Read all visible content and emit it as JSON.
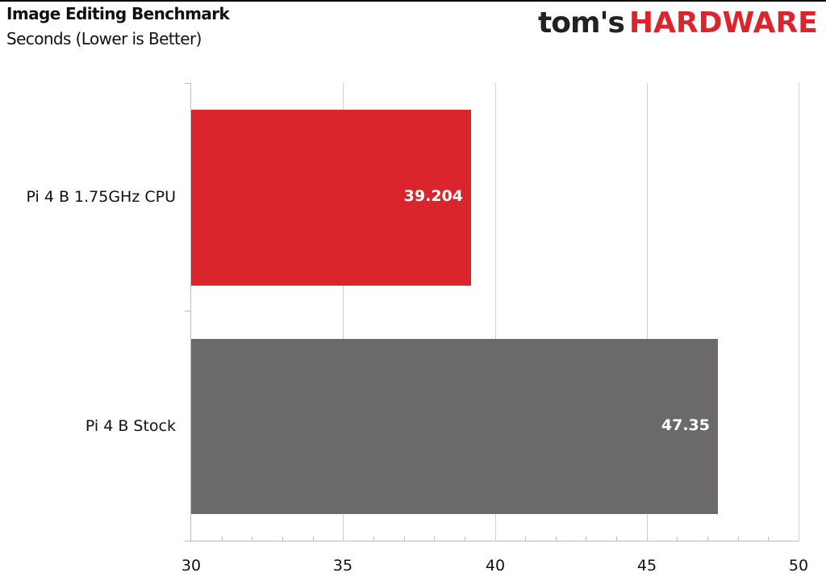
{
  "header": {
    "title": "Image Editing Benchmark",
    "subtitle": "Seconds (Lower is Better)",
    "logo_part1": "tom's",
    "logo_part2": "HARDWARE"
  },
  "colors": {
    "red": "#d9252b",
    "gray": "#6b6969",
    "grid": "#d0d0d0",
    "brand_red": "#d9252b"
  },
  "chart_data": {
    "type": "bar",
    "orientation": "horizontal",
    "title": "Image Editing Benchmark",
    "subtitle": "Seconds (Lower is Better)",
    "categories": [
      "Pi 4 B 1.75GHz CPU",
      "Pi 4 B Stock"
    ],
    "values": [
      39.204,
      47.35
    ],
    "value_labels": [
      "39.204",
      "47.35"
    ],
    "bar_colors": [
      "#d9252b",
      "#6b6969"
    ],
    "xlabel": "",
    "ylabel": "",
    "xlim": [
      30,
      50
    ],
    "xticks": [
      "30",
      "35",
      "40",
      "45",
      "50"
    ],
    "grid": true,
    "legend": "none"
  }
}
